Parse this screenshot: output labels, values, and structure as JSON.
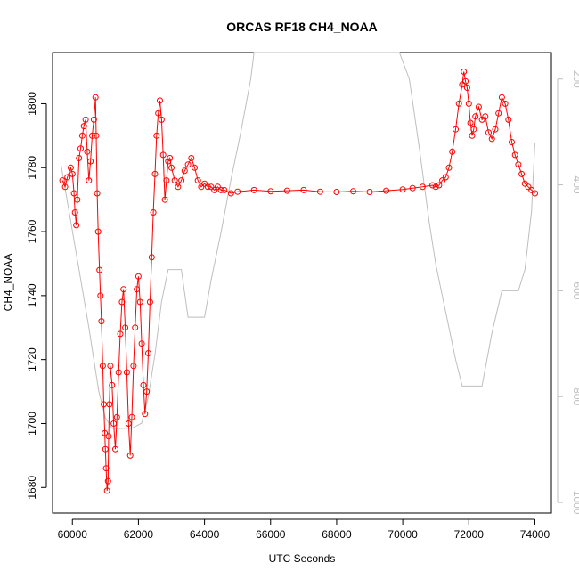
{
  "chart_data": {
    "type": "line",
    "title": "ORCAS RF18 CH4_NOAA",
    "xlabel": "UTC Seconds",
    "ylabel": "CH4_NOAA",
    "xlim": [
      59400,
      74500
    ],
    "ylim": [
      1672,
      1816
    ],
    "x_ticks": [
      60000,
      62000,
      64000,
      66000,
      68000,
      70000,
      72000,
      74000
    ],
    "y_ticks": [
      1680,
      1700,
      1720,
      1740,
      1760,
      1780,
      1800
    ],
    "y2_range": [
      1020,
      150
    ],
    "y2_ticks": [
      200,
      400,
      600,
      800,
      1000
    ],
    "grid": false,
    "colors": {
      "ch4": "#ff0000",
      "pressure": "#bebebe",
      "axis": "#000000",
      "axis2": "#bebebe"
    },
    "series": [
      {
        "marker": "open-circle",
        "points": [
          [
            59700,
            1776
          ],
          [
            59780,
            1774
          ],
          [
            59850,
            1777
          ],
          [
            59950,
            1780
          ],
          [
            60000,
            1778
          ],
          [
            60050,
            1772
          ],
          [
            60080,
            1766
          ],
          [
            60120,
            1762
          ],
          [
            60150,
            1770
          ],
          [
            60200,
            1783
          ],
          [
            60250,
            1786
          ],
          [
            60300,
            1790
          ],
          [
            60350,
            1793
          ],
          [
            60400,
            1795
          ],
          [
            60450,
            1785
          ],
          [
            60500,
            1776
          ],
          [
            60550,
            1782
          ],
          [
            60600,
            1790
          ],
          [
            60650,
            1795
          ],
          [
            60700,
            1802
          ],
          [
            60720,
            1790
          ],
          [
            60750,
            1772
          ],
          [
            60780,
            1760
          ],
          [
            60820,
            1748
          ],
          [
            60850,
            1740
          ],
          [
            60880,
            1732
          ],
          [
            60920,
            1718
          ],
          [
            60950,
            1706
          ],
          [
            60980,
            1697
          ],
          [
            61000,
            1692
          ],
          [
            61020,
            1686
          ],
          [
            61050,
            1679
          ],
          [
            61080,
            1682
          ],
          [
            61100,
            1696
          ],
          [
            61120,
            1706
          ],
          [
            61150,
            1718
          ],
          [
            61200,
            1712
          ],
          [
            61250,
            1700
          ],
          [
            61300,
            1692
          ],
          [
            61350,
            1702
          ],
          [
            61400,
            1716
          ],
          [
            61450,
            1728
          ],
          [
            61500,
            1738
          ],
          [
            61550,
            1742
          ],
          [
            61600,
            1730
          ],
          [
            61650,
            1716
          ],
          [
            61700,
            1700
          ],
          [
            61750,
            1690
          ],
          [
            61800,
            1702
          ],
          [
            61850,
            1718
          ],
          [
            61900,
            1730
          ],
          [
            61950,
            1742
          ],
          [
            62000,
            1746
          ],
          [
            62050,
            1738
          ],
          [
            62100,
            1725
          ],
          [
            62150,
            1712
          ],
          [
            62200,
            1703
          ],
          [
            62250,
            1710
          ],
          [
            62300,
            1722
          ],
          [
            62350,
            1738
          ],
          [
            62400,
            1752
          ],
          [
            62450,
            1766
          ],
          [
            62500,
            1778
          ],
          [
            62550,
            1790
          ],
          [
            62600,
            1797
          ],
          [
            62650,
            1801
          ],
          [
            62700,
            1795
          ],
          [
            62750,
            1784
          ],
          [
            62800,
            1770
          ],
          [
            62850,
            1776
          ],
          [
            62900,
            1782
          ],
          [
            62950,
            1783
          ],
          [
            63000,
            1780
          ],
          [
            63100,
            1776
          ],
          [
            63200,
            1774
          ],
          [
            63300,
            1776
          ],
          [
            63400,
            1779
          ],
          [
            63500,
            1781
          ],
          [
            63600,
            1783
          ],
          [
            63700,
            1780
          ],
          [
            63800,
            1776
          ],
          [
            63900,
            1774
          ],
          [
            64000,
            1775
          ],
          [
            64100,
            1774
          ],
          [
            64200,
            1774
          ],
          [
            64300,
            1773
          ],
          [
            64400,
            1774
          ],
          [
            64500,
            1773
          ],
          [
            64600,
            1773
          ],
          [
            64800,
            1772
          ],
          [
            65000,
            1772.5
          ],
          [
            65500,
            1773
          ],
          [
            66000,
            1772.6
          ],
          [
            66500,
            1772.8
          ],
          [
            67000,
            1773
          ],
          [
            67500,
            1772.5
          ],
          [
            68000,
            1772.4
          ],
          [
            68500,
            1772.6
          ],
          [
            69000,
            1772.4
          ],
          [
            69500,
            1772.8
          ],
          [
            70000,
            1773.2
          ],
          [
            70300,
            1773.6
          ],
          [
            70600,
            1774
          ],
          [
            70900,
            1774.5
          ],
          [
            71000,
            1774
          ],
          [
            71100,
            1774.5
          ],
          [
            71200,
            1776
          ],
          [
            71300,
            1777
          ],
          [
            71400,
            1780
          ],
          [
            71500,
            1785
          ],
          [
            71600,
            1792
          ],
          [
            71700,
            1800
          ],
          [
            71800,
            1806
          ],
          [
            71850,
            1810
          ],
          [
            71900,
            1807
          ],
          [
            71950,
            1805
          ],
          [
            72000,
            1800
          ],
          [
            72050,
            1794
          ],
          [
            72100,
            1790
          ],
          [
            72150,
            1792
          ],
          [
            72200,
            1796
          ],
          [
            72300,
            1799
          ],
          [
            72400,
            1795
          ],
          [
            72500,
            1796
          ],
          [
            72600,
            1791
          ],
          [
            72700,
            1789
          ],
          [
            72800,
            1792
          ],
          [
            72900,
            1797
          ],
          [
            73000,
            1802
          ],
          [
            73100,
            1800
          ],
          [
            73200,
            1795
          ],
          [
            73300,
            1788
          ],
          [
            73400,
            1784
          ],
          [
            73500,
            1781
          ],
          [
            73600,
            1778
          ],
          [
            73700,
            1775
          ],
          [
            73800,
            1774
          ],
          [
            73900,
            1773
          ],
          [
            74000,
            1772
          ]
        ]
      },
      {
        "axis": "y2",
        "points": [
          [
            59650,
            360
          ],
          [
            59900,
            450
          ],
          [
            60200,
            560
          ],
          [
            60500,
            670
          ],
          [
            60800,
            790
          ],
          [
            61000,
            840
          ],
          [
            61200,
            860
          ],
          [
            61500,
            860
          ],
          [
            61800,
            860
          ],
          [
            62100,
            850
          ],
          [
            62300,
            800
          ],
          [
            62500,
            720
          ],
          [
            62700,
            620
          ],
          [
            62900,
            560
          ],
          [
            63100,
            560
          ],
          [
            63300,
            560
          ],
          [
            63500,
            650
          ],
          [
            63700,
            650
          ],
          [
            64000,
            650
          ],
          [
            64200,
            580
          ],
          [
            64500,
            490
          ],
          [
            64800,
            390
          ],
          [
            65100,
            300
          ],
          [
            65400,
            200
          ],
          [
            65500,
            150
          ],
          [
            69900,
            150
          ],
          [
            70200,
            200
          ],
          [
            70500,
            330
          ],
          [
            70800,
            470
          ],
          [
            71000,
            550
          ],
          [
            71300,
            640
          ],
          [
            71600,
            730
          ],
          [
            71800,
            780
          ],
          [
            72000,
            780
          ],
          [
            72400,
            780
          ],
          [
            72700,
            680
          ],
          [
            73000,
            600
          ],
          [
            73200,
            600
          ],
          [
            73500,
            600
          ],
          [
            73700,
            560
          ],
          [
            73900,
            450
          ],
          [
            74000,
            320
          ]
        ]
      }
    ]
  }
}
